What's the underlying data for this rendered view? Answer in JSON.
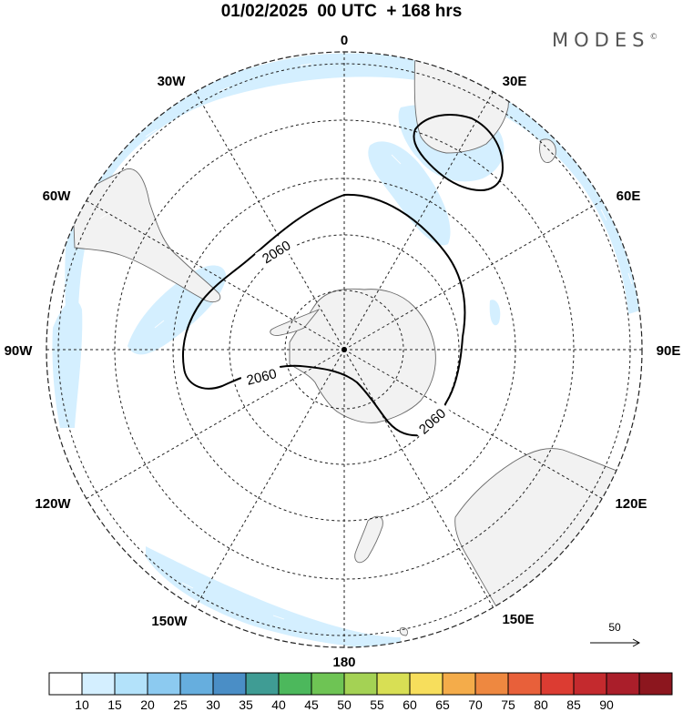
{
  "title": "01/02/2025  00 UTC  + 168 hrs",
  "brand": "MODES",
  "brand_mark": "©",
  "longitude_labels": [
    {
      "id": "lon-0",
      "text": "0"
    },
    {
      "id": "lon-30e",
      "text": "30E"
    },
    {
      "id": "lon-60e",
      "text": "60E"
    },
    {
      "id": "lon-90e",
      "text": "90E"
    },
    {
      "id": "lon-120e",
      "text": "120E"
    },
    {
      "id": "lon-150e",
      "text": "150E"
    },
    {
      "id": "lon-180",
      "text": "180"
    },
    {
      "id": "lon-150w",
      "text": "150W"
    },
    {
      "id": "lon-120w",
      "text": "120W"
    },
    {
      "id": "lon-90w",
      "text": "90W"
    },
    {
      "id": "lon-60w",
      "text": "60W"
    },
    {
      "id": "lon-30w",
      "text": "30W"
    }
  ],
  "contour_labels": [
    "2060",
    "2060",
    "2060"
  ],
  "vector_reference": "50",
  "colorbar": {
    "colors": [
      "#ffffff",
      "#d4efff",
      "#b3e2fa",
      "#8ccaf0",
      "#66aede",
      "#4a8ec6",
      "#3f9c94",
      "#4cb85c",
      "#6ec454",
      "#a4d254",
      "#d8df54",
      "#f7de5c",
      "#f4ac4a",
      "#ee8840",
      "#e8603a",
      "#dc3c32",
      "#c42a2e",
      "#aa1e2a",
      "#8c161e"
    ],
    "labels": [
      "10",
      "15",
      "20",
      "25",
      "30",
      "35",
      "40",
      "45",
      "50",
      "55",
      "60",
      "65",
      "70",
      "75",
      "80",
      "85",
      "90"
    ]
  }
}
